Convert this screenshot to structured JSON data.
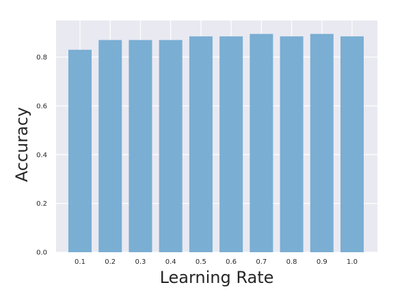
{
  "chart_data": {
    "type": "bar",
    "categories": [
      "0.1",
      "0.2",
      "0.3",
      "0.4",
      "0.5",
      "0.6",
      "0.7",
      "0.8",
      "0.9",
      "1.0"
    ],
    "values": [
      0.83,
      0.87,
      0.87,
      0.87,
      0.885,
      0.885,
      0.895,
      0.885,
      0.895,
      0.885
    ],
    "xlabel": "Learning Rate",
    "ylabel": "Accuracy",
    "ylim": [
      0,
      0.95
    ],
    "yticks": [
      "0.0",
      "0.2",
      "0.4",
      "0.6",
      "0.8"
    ],
    "grid": true,
    "colors": {
      "bar": "#7aaed3",
      "plot_background": "#e9e9f1",
      "grid": "#ffffff",
      "text": "#262626"
    }
  }
}
